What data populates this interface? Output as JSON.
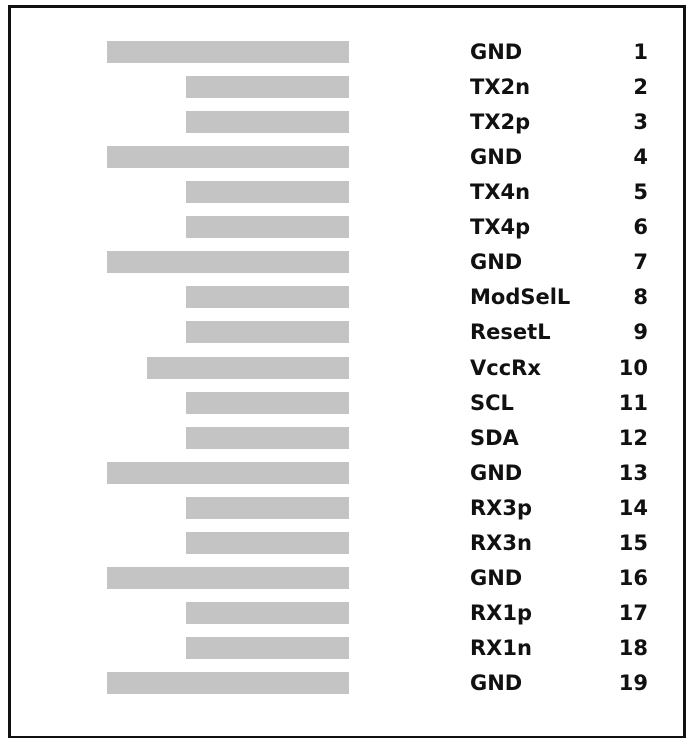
{
  "pins": [
    {
      "name": "GND",
      "number": 1
    },
    {
      "name": "TX2n",
      "number": 2
    },
    {
      "name": "TX2p",
      "number": 3
    },
    {
      "name": "GND",
      "number": 4
    },
    {
      "name": "TX4n",
      "number": 5
    },
    {
      "name": "TX4p",
      "number": 6
    },
    {
      "name": "GND",
      "number": 7
    },
    {
      "name": "ModSelL",
      "number": 8
    },
    {
      "name": "ResetL",
      "number": 9
    },
    {
      "name": "VccRx",
      "number": 10
    },
    {
      "name": "SCL",
      "number": 11
    },
    {
      "name": "SDA",
      "number": 12
    },
    {
      "name": "GND",
      "number": 13
    },
    {
      "name": "RX3p",
      "number": 14
    },
    {
      "name": "RX3n",
      "number": 15
    },
    {
      "name": "GND",
      "number": 16
    },
    {
      "name": "RX1p",
      "number": 17
    },
    {
      "name": "RX1n",
      "number": 18
    },
    {
      "name": "GND",
      "number": 19
    }
  ]
}
